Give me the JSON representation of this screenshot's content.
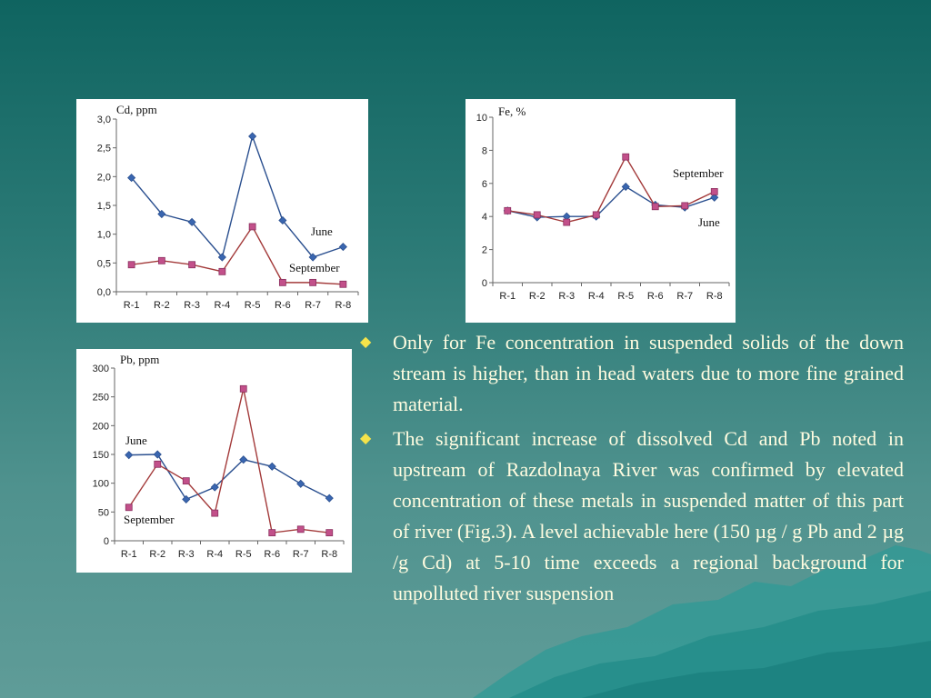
{
  "colors": {
    "june": "#2a4f8f",
    "september": "#a33a3a",
    "june_marker": "#3a66b0",
    "september_marker": "#c2508a",
    "bullet": "#f5e34a"
  },
  "bullets": [
    "Only for Fe concentration in suspended solids of the down stream is higher, than in head waters due to more fine grained  material.",
    " The significant increase of dissolved Cd and Pb noted in upstream of Razdolnaya River was confirmed by elevated concentration of these metals in suspended matter of this part of river (Fig.3). A level achievable here (150 µg / g Pb and 2 µg /g Cd) at 5-10 time exceeds a regional background for unpolluted river suspension"
  ],
  "chart_data": [
    {
      "id": "cd",
      "type": "line",
      "title": "Cd, ppm",
      "categories": [
        "R-1",
        "R-2",
        "R-3",
        "R-4",
        "R-5",
        "R-6",
        "R-7",
        "R-8"
      ],
      "yticks": [
        "0,0",
        "0,5",
        "1,0",
        "1,5",
        "2,0",
        "2,5",
        "3,0"
      ],
      "ylim": [
        0,
        3
      ],
      "grid": false,
      "series": [
        {
          "name": "June",
          "values": [
            1.98,
            1.35,
            1.21,
            0.6,
            2.7,
            1.24,
            0.6,
            0.78
          ]
        },
        {
          "name": "September",
          "values": [
            0.47,
            0.54,
            0.47,
            0.35,
            1.13,
            0.16,
            0.16,
            0.13
          ]
        }
      ]
    },
    {
      "id": "fe",
      "type": "line",
      "title": "Fe, %",
      "categories": [
        "R-1",
        "R-2",
        "R-3",
        "R-4",
        "R-5",
        "R-6",
        "R-7",
        "R-8"
      ],
      "yticks": [
        "0",
        "2",
        "4",
        "6",
        "8",
        "10"
      ],
      "ylim": [
        0,
        10
      ],
      "grid": false,
      "series": [
        {
          "name": "June",
          "values": [
            4.35,
            3.95,
            4.0,
            4.0,
            5.8,
            4.7,
            4.55,
            5.15
          ]
        },
        {
          "name": "September",
          "values": [
            4.35,
            4.1,
            3.65,
            4.1,
            7.6,
            4.6,
            4.65,
            5.5
          ]
        }
      ]
    },
    {
      "id": "pb",
      "type": "line",
      "title": "Pb, ppm",
      "categories": [
        "R-1",
        "R-2",
        "R-3",
        "R-4",
        "R-5",
        "R-6",
        "R-7",
        "R-8"
      ],
      "yticks": [
        "0",
        "50",
        "100",
        "150",
        "200",
        "250",
        "300"
      ],
      "ylim": [
        0,
        300
      ],
      "grid": false,
      "series": [
        {
          "name": "June",
          "values": [
            149,
            150,
            72,
            93,
            141,
            129,
            99,
            74
          ]
        },
        {
          "name": "September",
          "values": [
            58,
            133,
            104,
            48,
            264,
            14,
            20,
            14
          ]
        }
      ]
    }
  ]
}
